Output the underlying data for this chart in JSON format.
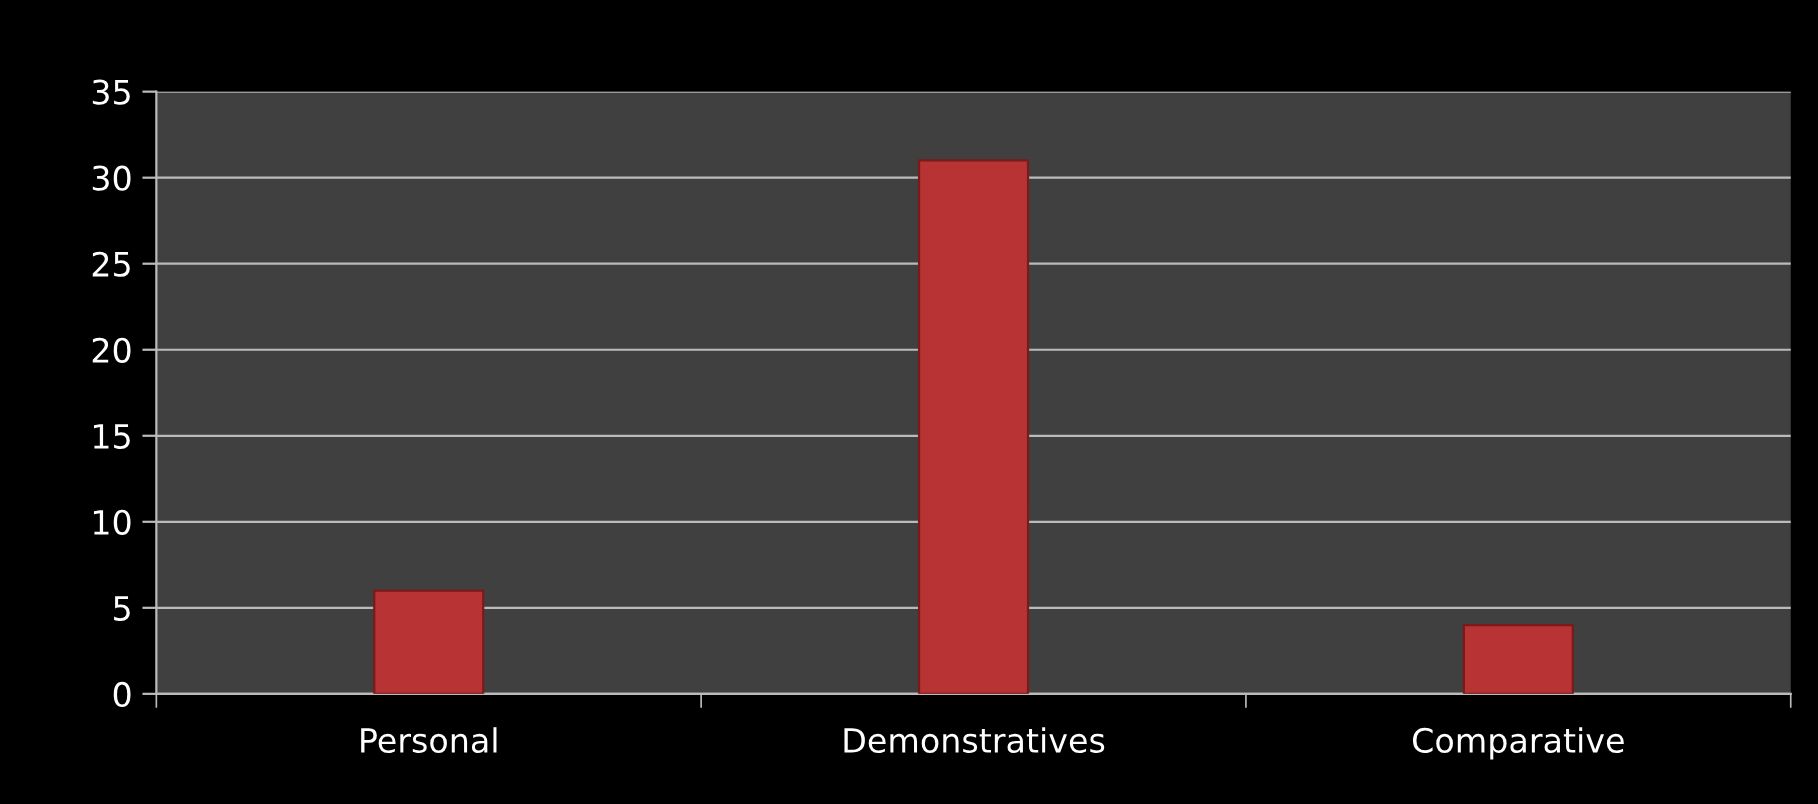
{
  "chart_data": {
    "type": "bar",
    "categories": [
      "Personal",
      "Demonstratives",
      "Comparative"
    ],
    "values": [
      6,
      31,
      4
    ],
    "color": "#b83333",
    "ylim": [
      0,
      35
    ],
    "yticks": [
      0,
      5,
      10,
      15,
      20,
      25,
      30,
      35
    ],
    "grid": "y",
    "legend": false
  }
}
